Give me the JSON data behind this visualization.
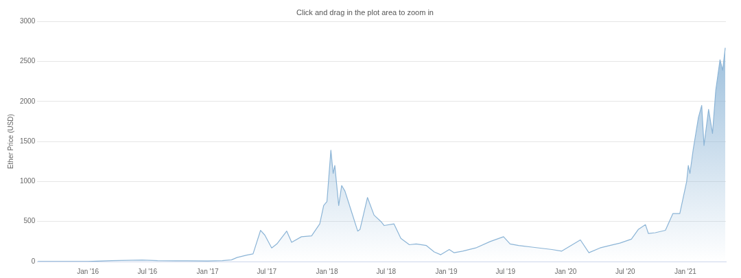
{
  "chart_data": {
    "type": "area",
    "subtitle": "Click and drag in the plot area to zoom in",
    "ylabel": "Ether Price (USD)",
    "xlim": [
      "2015-07-30",
      "2021-05-05"
    ],
    "xticks": [
      {
        "value": "2016-01-01",
        "label": "Jan '16"
      },
      {
        "value": "2016-07-01",
        "label": "Jul '16"
      },
      {
        "value": "2017-01-01",
        "label": "Jan '17"
      },
      {
        "value": "2017-07-01",
        "label": "Jul '17"
      },
      {
        "value": "2018-01-01",
        "label": "Jan '18"
      },
      {
        "value": "2018-07-01",
        "label": "Jul '18"
      },
      {
        "value": "2019-01-01",
        "label": "Jan '19"
      },
      {
        "value": "2019-07-01",
        "label": "Jul '19"
      },
      {
        "value": "2020-01-01",
        "label": "Jan '20"
      },
      {
        "value": "2020-07-01",
        "label": "Jul '20"
      },
      {
        "value": "2021-01-01",
        "label": "Jan '21"
      }
    ],
    "ylim": [
      0,
      3000
    ],
    "yticks": [
      0,
      500,
      1000,
      1500,
      2000,
      2500,
      3000
    ],
    "grid": "y",
    "legend": false,
    "marker": "none",
    "line_style": "solid",
    "series": [
      {
        "color": "#8bb4d6",
        "x": [
          "2015-08-01",
          "2015-10-15",
          "2016-01-01",
          "2016-03-15",
          "2016-06-15",
          "2016-08-01",
          "2016-11-01",
          "2017-01-01",
          "2017-02-15",
          "2017-03-15",
          "2017-04-01",
          "2017-05-01",
          "2017-05-20",
          "2017-06-12",
          "2017-06-25",
          "2017-07-16",
          "2017-08-01",
          "2017-08-31",
          "2017-09-15",
          "2017-10-15",
          "2017-11-15",
          "2017-12-10",
          "2017-12-22",
          "2018-01-01",
          "2018-01-13",
          "2018-01-20",
          "2018-01-25",
          "2018-02-06",
          "2018-02-15",
          "2018-02-25",
          "2018-03-15",
          "2018-04-05",
          "2018-04-12",
          "2018-05-05",
          "2018-05-25",
          "2018-06-15",
          "2018-06-25",
          "2018-07-25",
          "2018-08-15",
          "2018-09-10",
          "2018-10-01",
          "2018-11-01",
          "2018-11-25",
          "2018-12-15",
          "2019-01-10",
          "2019-01-25",
          "2019-02-20",
          "2019-04-01",
          "2019-05-15",
          "2019-06-25",
          "2019-07-15",
          "2019-08-10",
          "2019-09-20",
          "2019-11-20",
          "2019-12-20",
          "2020-02-15",
          "2020-03-12",
          "2020-04-15",
          "2020-05-15",
          "2020-06-15",
          "2020-07-20",
          "2020-08-10",
          "2020-09-01",
          "2020-09-10",
          "2020-10-01",
          "2020-11-01",
          "2020-11-24",
          "2020-12-15",
          "2021-01-05",
          "2021-01-10",
          "2021-01-15",
          "2021-01-25",
          "2021-02-10",
          "2021-02-20",
          "2021-02-27",
          "2021-03-13",
          "2021-03-25",
          "2021-04-04",
          "2021-04-17",
          "2021-04-25",
          "2021-05-03"
        ],
        "values": [
          1,
          1,
          1,
          12,
          18,
          11,
          10,
          8,
          12,
          20,
          50,
          80,
          95,
          390,
          330,
          170,
          220,
          380,
          240,
          310,
          320,
          470,
          700,
          750,
          1390,
          1100,
          1200,
          700,
          950,
          880,
          650,
          380,
          400,
          800,
          580,
          500,
          450,
          470,
          290,
          210,
          220,
          200,
          120,
          85,
          150,
          110,
          130,
          170,
          250,
          310,
          220,
          200,
          180,
          150,
          130,
          270,
          110,
          170,
          200,
          230,
          280,
          400,
          460,
          350,
          360,
          390,
          600,
          600,
          1000,
          1200,
          1100,
          1400,
          1800,
          1950,
          1450,
          1900,
          1600,
          2140,
          2520,
          2390,
          2670
        ]
      }
    ]
  }
}
